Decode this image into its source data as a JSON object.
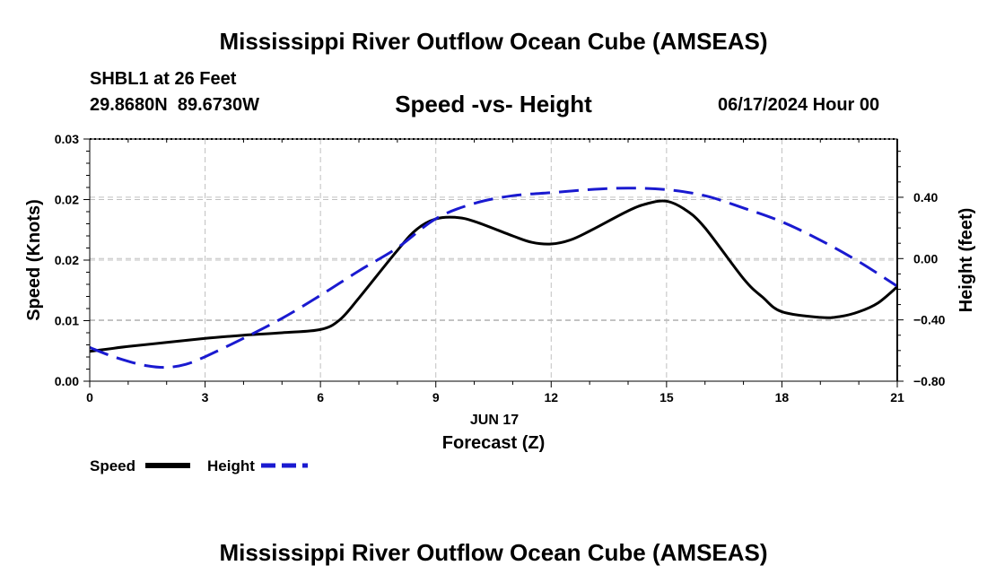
{
  "page": {
    "title": "Mississippi River Outflow Ocean Cube (AMSEAS)",
    "footer_title": "Mississippi River Outflow Ocean Cube (AMSEAS)",
    "station": "SHBL1 at 26 Feet",
    "coords": "29.8680N  89.6730W",
    "subtitle": "Speed -vs- Height",
    "datetime": "06/17/2024 Hour 00",
    "legend_speed": "Speed",
    "legend_height": "Height"
  },
  "chart_data": {
    "type": "line",
    "title": "Speed -vs- Height",
    "xlabel": "Forecast (Z)",
    "xlabel_date": "JUN 17",
    "ylabel": "Speed (Knots)",
    "ylabel_right": "Height (feet)",
    "xlim": [
      0,
      21
    ],
    "ylim": [
      0,
      0.03
    ],
    "ylim_right": [
      -0.8,
      0.78
    ],
    "x_ticks": [
      0,
      3,
      6,
      9,
      12,
      15,
      18,
      21
    ],
    "x_tick_labels": [
      "0",
      "3",
      "6",
      "9",
      "12",
      "15",
      "18",
      "21"
    ],
    "y_ticks": [
      0,
      0.0075,
      0.015,
      0.0225,
      0.03
    ],
    "y_tick_labels": [
      "0.00",
      "0.01",
      "0.02",
      "0.02",
      "0.03"
    ],
    "y_right_ticks": [
      -0.8,
      -0.4,
      0.0,
      0.4
    ],
    "y_right_tick_labels": [
      "−0.80",
      "−0.40",
      "0.00",
      "0.40"
    ],
    "grid": true,
    "colors": {
      "speed": "#000000",
      "height": "#1a1ad0",
      "grid": "#c0c0c0"
    },
    "series": [
      {
        "name": "Speed",
        "axis": "left",
        "style": "solid",
        "x": [
          0,
          1,
          2,
          3,
          4,
          5,
          6,
          6.5,
          7,
          8,
          8.5,
          9,
          9.5,
          10,
          11,
          11.5,
          12,
          12.5,
          13,
          14,
          14.5,
          15,
          15.5,
          16,
          17,
          17.5,
          18,
          19,
          19.5,
          20,
          20.5,
          21
        ],
        "values": [
          0.0037,
          0.0043,
          0.0048,
          0.0053,
          0.0057,
          0.006,
          0.0064,
          0.0076,
          0.0103,
          0.0162,
          0.0188,
          0.0201,
          0.0203,
          0.0198,
          0.018,
          0.0172,
          0.017,
          0.0175,
          0.0186,
          0.0211,
          0.022,
          0.0223,
          0.0212,
          0.019,
          0.0127,
          0.0104,
          0.0086,
          0.0079,
          0.008,
          0.0086,
          0.0097,
          0.0117
        ]
      },
      {
        "name": "Height",
        "axis": "right",
        "style": "dashed",
        "x": [
          0,
          0.5,
          1,
          1.5,
          2,
          2.5,
          3,
          4,
          5,
          6,
          7,
          8,
          9,
          10,
          11,
          12,
          13,
          14,
          15,
          16,
          17,
          18,
          19,
          20,
          21
        ],
        "values": [
          -0.58,
          -0.63,
          -0.67,
          -0.7,
          -0.71,
          -0.69,
          -0.64,
          -0.52,
          -0.39,
          -0.24,
          -0.08,
          0.07,
          0.26,
          0.36,
          0.41,
          0.43,
          0.45,
          0.46,
          0.45,
          0.41,
          0.33,
          0.24,
          0.12,
          -0.02,
          -0.18
        ]
      }
    ]
  }
}
